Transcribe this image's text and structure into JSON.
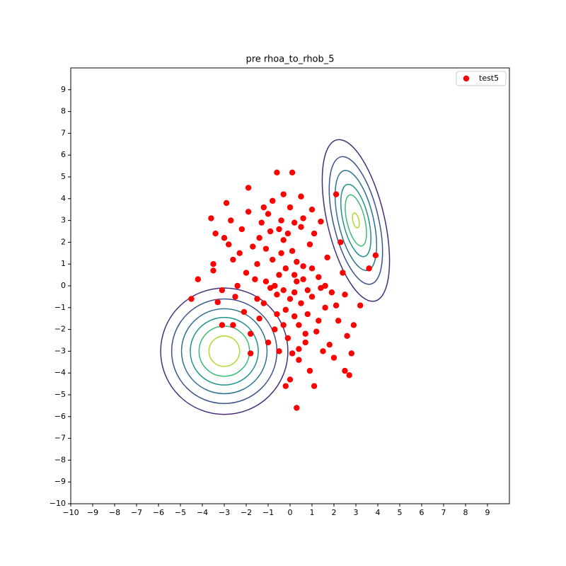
{
  "chart_data": {
    "type": "scatter",
    "title": "pre rhoa_to_rhob_5",
    "legend": "upper right",
    "xlim": [
      -10,
      10
    ],
    "ylim": [
      -10,
      10
    ],
    "xticks": [
      {
        "value": -10,
        "label": "−10"
      },
      {
        "value": -9,
        "label": "−9"
      },
      {
        "value": -8,
        "label": "−8"
      },
      {
        "value": -7,
        "label": "−7"
      },
      {
        "value": -6,
        "label": "−6"
      },
      {
        "value": -5,
        "label": "−5"
      },
      {
        "value": -4,
        "label": "−4"
      },
      {
        "value": -3,
        "label": "−3"
      },
      {
        "value": -2,
        "label": "−2"
      },
      {
        "value": -1,
        "label": "−1"
      },
      0,
      1,
      2,
      3,
      4,
      5,
      6,
      7,
      8,
      9
    ],
    "yticks": [
      {
        "value": -10,
        "label": "−10"
      },
      {
        "value": -9,
        "label": "−9"
      },
      {
        "value": -8,
        "label": "−8"
      },
      {
        "value": -7,
        "label": "−7"
      },
      {
        "value": -6,
        "label": "−6"
      },
      {
        "value": -5,
        "label": "−5"
      },
      {
        "value": -4,
        "label": "−4"
      },
      {
        "value": -3,
        "label": "−3"
      },
      {
        "value": -2,
        "label": "−2"
      },
      {
        "value": -1,
        "label": "−1"
      },
      0,
      1,
      2,
      3,
      4,
      5,
      6,
      7,
      8,
      9
    ],
    "contour_colors": [
      "#472d7b",
      "#3b528b",
      "#2c728e",
      "#21918c",
      "#3bbb75",
      "#addc30"
    ],
    "contours": [
      {
        "center": [
          -3,
          -3
        ],
        "angle": 0,
        "rx": [
          2.9,
          2.4,
          1.95,
          1.55,
          1.15,
          0.7
        ],
        "ry": [
          2.9,
          2.4,
          1.95,
          1.55,
          1.15,
          0.7
        ]
      },
      {
        "center": [
          3,
          3
        ],
        "angle": 13.3,
        "rx": [
          1.3,
          1.03,
          0.8,
          0.58,
          0.41,
          0.14
        ],
        "ry": [
          3.8,
          3.0,
          2.35,
          1.7,
          1.2,
          0.35
        ]
      }
    ],
    "series": [
      {
        "name": "test5",
        "color": "#ff0000",
        "x": [
          0.3,
          -0.6,
          0.1,
          -1.9,
          -4.5,
          -4.2,
          -3.6,
          3.6,
          3.2,
          2.7,
          2.5,
          -0.2,
          0,
          1.1,
          -2.9,
          -3.4,
          -3.5,
          -3.5,
          3.9,
          2.8,
          -1.8,
          -2.6,
          -3.1,
          -3.1,
          -3.3,
          2.1,
          0.5,
          -0.3,
          1.4,
          1.0,
          -0.5,
          0.2,
          -0.8,
          0.6,
          -0.2,
          0.4,
          -1.1,
          1.0,
          -0.3,
          0.1,
          -1.5,
          0.8,
          -0.6,
          0.3,
          -1.2,
          1.3,
          -0.9,
          0.5,
          -0.1,
          0.7,
          -1.7,
          1.6,
          -0.4,
          0.2,
          -2.0,
          1.9,
          -1.4,
          1.2,
          -0.7,
          0.9,
          -2.3,
          2.2,
          -1.0,
          0.0,
          -2.5,
          2.4,
          -1.8,
          1.5,
          0.4,
          -0.5,
          -2.2,
          1.7,
          -2.8,
          2.6,
          -1.3,
          1.1,
          -0.2,
          0.5,
          -0.9,
          0.0,
          -0.4,
          0.3,
          -1.6,
          1.4,
          -0.6,
          0.7,
          -2.7,
          2.0,
          -1.9,
          1.8,
          -0.8,
          0.9,
          -2.1,
          2.3,
          -3.0,
          2.9,
          -0.3,
          0.6,
          -1.1,
          1.0,
          -0.1,
          0.2,
          -1.4,
          1.3,
          -0.7,
          0.4,
          -2.4,
          2.1,
          -1.5,
          1.6,
          -0.5,
          0.8,
          -1.0,
          0.1,
          -2.6,
          2.5,
          -1.2,
          0.6,
          -0.3,
          0.2
        ],
        "y": [
          -5.6,
          5.2,
          5.2,
          4.5,
          -0.6,
          0.3,
          3.1,
          0.8,
          -0.9,
          -4.1,
          -3.9,
          -4.6,
          -4.3,
          -4.6,
          3.8,
          2.4,
          1.0,
          0.7,
          1.4,
          -3.1,
          -3.1,
          -1.8,
          -1.8,
          -0.2,
          -0.75,
          4.2,
          4.1,
          4.2,
          2.95,
          3.5,
          0.5,
          -0.3,
          1.2,
          0.9,
          -1.1,
          -1.8,
          0.2,
          -0.5,
          2.1,
          1.6,
          1.0,
          -1.3,
          -0.4,
          0.2,
          -0.8,
          0.4,
          2.5,
          2.7,
          -2.4,
          -2.6,
          1.8,
          -1.0,
          3.0,
          2.9,
          0.6,
          -0.3,
          -1.5,
          -2.1,
          -2.0,
          1.9,
          1.5,
          -1.6,
          3.3,
          3.6,
          -0.5,
          0.6,
          -2.2,
          -3.0,
          -3.4,
          -3.0,
          2.6,
          1.3,
          1.9,
          -2.3,
          2.9,
          2.4,
          0.8,
          -0.8,
          -0.1,
          -0.6,
          1.5,
          1.1,
          0.3,
          -0.1,
          -1.3,
          -2.2,
          3.0,
          -3.3,
          3.4,
          -2.7,
          3.9,
          -3.9,
          -1.2,
          2.0,
          2.2,
          -1.8,
          -1.8,
          0.3,
          1.7,
          0.8,
          2.4,
          -1.4,
          2.2,
          -1.6,
          0.0,
          -2.9,
          0.0,
          -0.9,
          -0.6,
          0.0,
          2.6,
          -0.2,
          -2.6,
          -3.1,
          1.2,
          -0.4,
          3.6,
          3.1,
          -0.2,
          0.5
        ]
      }
    ]
  }
}
